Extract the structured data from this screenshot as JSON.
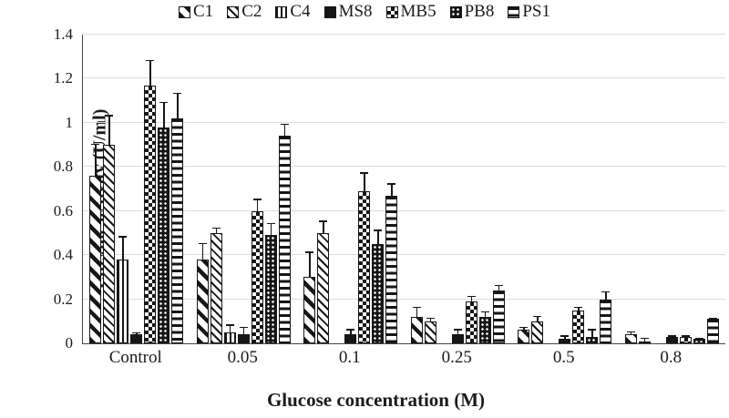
{
  "colors": {
    "bar_ink": "#161616",
    "gridline": "#dcdcdc",
    "axis": "#454545",
    "text": "#1a1a1a",
    "background": "#ffffff"
  },
  "chart_data": {
    "type": "bar",
    "title": "",
    "xlabel": "Glucose concentration (M)",
    "ylabel": "Enzyme activity (U/ml)",
    "ylim": [
      0,
      1.4
    ],
    "ytick_values": [
      0,
      0.2,
      0.4,
      0.6,
      0.8,
      1,
      1.2,
      1.4
    ],
    "ytick_labels": [
      "0",
      "0.2",
      "0.4",
      "0.6",
      "0.8",
      "1",
      "1.2",
      "1.4"
    ],
    "grid": "horizontal-light",
    "legend_position": "top-center",
    "error_bars": "plus-direction caps",
    "categories": [
      "Control",
      "0.05",
      "0.1",
      "0.25",
      "0.5",
      "0.8"
    ],
    "series": [
      {
        "name": "C1",
        "pattern": "wide-diagonal-stripes",
        "values": [
          0.76,
          0.38,
          0.3,
          0.12,
          0.06,
          0.04
        ],
        "errors_plus": [
          0.15,
          0.08,
          0.12,
          0.05,
          0.02,
          0.02
        ]
      },
      {
        "name": "C2",
        "pattern": "thin-diagonal-stripes",
        "values": [
          0.9,
          0.5,
          0.5,
          0.1,
          0.1,
          0.01
        ],
        "errors_plus": [
          0.14,
          0.03,
          0.06,
          0.02,
          0.03,
          0.02
        ]
      },
      {
        "name": "C4",
        "pattern": "vertical-stripes",
        "values": [
          0.38,
          0.05,
          0,
          0,
          0,
          0
        ],
        "errors_plus": [
          0.11,
          0.04,
          0,
          0,
          0,
          0
        ]
      },
      {
        "name": "MS8",
        "pattern": "solid-black",
        "values": [
          0.04,
          0.04,
          0.04,
          0.04,
          0.02,
          0.03
        ],
        "errors_plus": [
          0.015,
          0.04,
          0.03,
          0.03,
          0.02,
          0.01
        ]
      },
      {
        "name": "MB5",
        "pattern": "checkerboard",
        "values": [
          1.17,
          0.6,
          0.69,
          0.19,
          0.15,
          0.03
        ],
        "errors_plus": [
          0.12,
          0.06,
          0.09,
          0.03,
          0.02,
          0.01
        ]
      },
      {
        "name": "PB8",
        "pattern": "white-dots-on-black",
        "values": [
          0.98,
          0.49,
          0.45,
          0.12,
          0.03,
          0.02
        ],
        "errors_plus": [
          0.12,
          0.06,
          0.07,
          0.03,
          0.04,
          0.01
        ]
      },
      {
        "name": "PS1",
        "pattern": "horizontal-stripes",
        "values": [
          1.02,
          0.94,
          0.67,
          0.24,
          0.2,
          0.11
        ],
        "errors_plus": [
          0.12,
          0.06,
          0.06,
          0.03,
          0.04,
          0.01
        ]
      }
    ]
  }
}
